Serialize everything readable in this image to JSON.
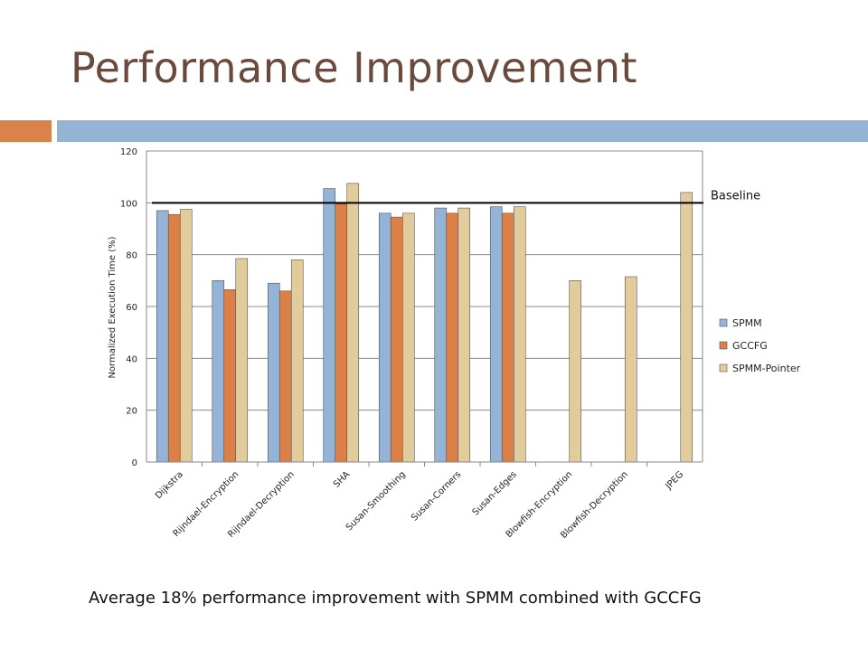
{
  "slide": {
    "title": "Performance Improvement",
    "caption": "Average 18% performance improvement with SPMM combined with GCCFG"
  },
  "colors": {
    "title": "#6b4a3e",
    "accent_bar": "#d9834a",
    "header_bar": "#94b4d4"
  },
  "chart_data": {
    "type": "bar",
    "ylabel": "Normalized Execution Time (%)",
    "ylim": [
      0,
      120
    ],
    "yticks": [
      0,
      20,
      40,
      60,
      80,
      100,
      120
    ],
    "grid": true,
    "legend_position": "right",
    "categories": [
      "Dijkstra",
      "Rijndael-Encryption",
      "Rijndael-Decryption",
      "SHA",
      "Susan-Smoothing",
      "Susan-Corners",
      "Susan-Edges",
      "Blowfish-Encryption",
      "Blowfish-Decryption",
      "JPEG"
    ],
    "series": [
      {
        "name": "SPMM",
        "color": "#93b3d7",
        "values": [
          97,
          70,
          69,
          105.5,
          96,
          98,
          98.5,
          null,
          null,
          null
        ]
      },
      {
        "name": "GCCFG",
        "color": "#dd8048",
        "values": [
          95.5,
          66.5,
          66,
          99.5,
          94.5,
          96,
          96,
          null,
          null,
          null
        ]
      },
      {
        "name": "SPMM-Pointer",
        "color": "#e2cc9b",
        "values": [
          97.5,
          78.5,
          78,
          107.5,
          96,
          98,
          98.5,
          70,
          71.5,
          104
        ]
      }
    ],
    "reference_line": {
      "label": "Baseline",
      "value": 100
    }
  }
}
